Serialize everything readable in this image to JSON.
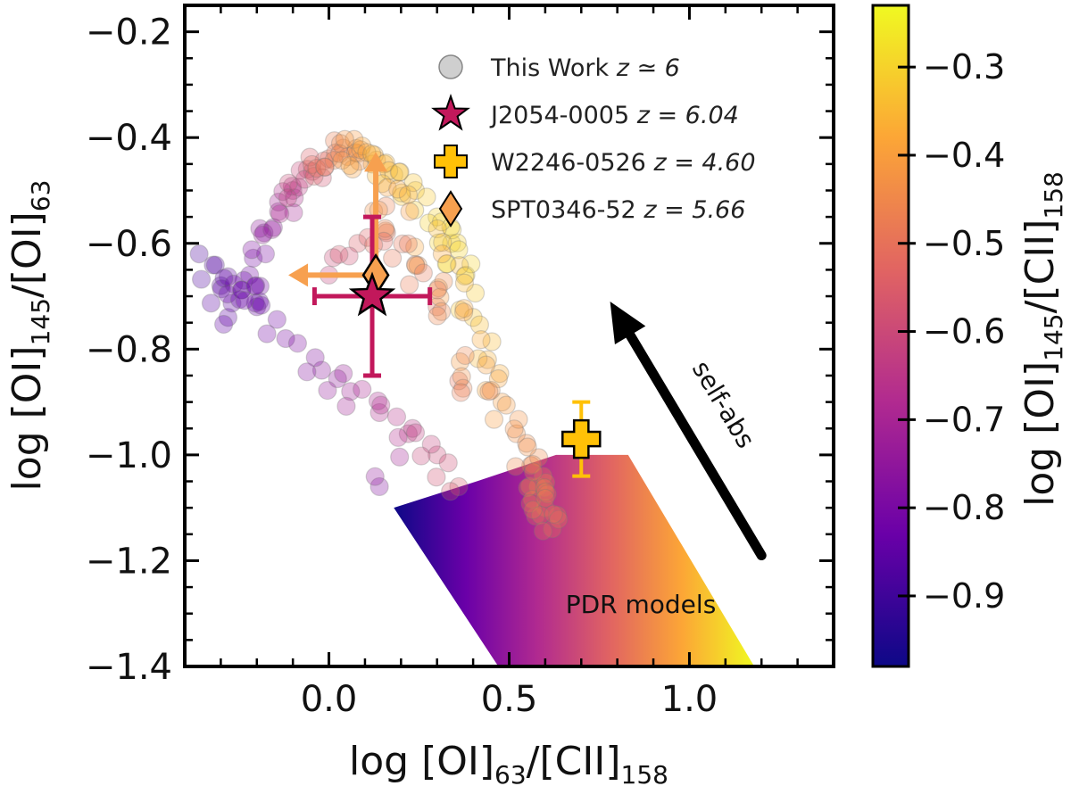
{
  "chart_data": {
    "type": "scatter",
    "xlabel": {
      "main": "log [OI]",
      "sub1": "63",
      "mid": "/[CII]",
      "sub2": "158"
    },
    "ylabel": {
      "main": "log [OI]",
      "sub1": "145",
      "mid": "/[OI]",
      "sub2": "63"
    },
    "xlim": [
      -0.4,
      1.4
    ],
    "ylim": [
      -1.4,
      -0.15
    ],
    "xticks": [
      0.0,
      0.5,
      1.0
    ],
    "xtick_labels": [
      "0.0",
      "0.5",
      "1.0"
    ],
    "yticks": [
      -1.4,
      -1.2,
      -1.0,
      -0.8,
      -0.6,
      -0.4,
      -0.2
    ],
    "ytick_labels": [
      "−1.4",
      "−1.2",
      "−1.0",
      "−0.8",
      "−0.6",
      "−0.4",
      "−0.2"
    ],
    "colorbar": {
      "label": {
        "main": "log [OI]",
        "sub1": "145",
        "mid": "/[CII]",
        "sub2": "158"
      },
      "range": [
        -0.98,
        -0.23
      ],
      "ticks": [
        -0.9,
        -0.8,
        -0.7,
        -0.6,
        -0.5,
        -0.4,
        -0.3
      ],
      "tick_labels": [
        "−0.9",
        "−0.8",
        "−0.7",
        "−0.6",
        "−0.5",
        "−0.4",
        "−0.3"
      ],
      "colors": [
        "#0d0887",
        "#6a00a8",
        "#b12a90",
        "#e16462",
        "#fca636",
        "#f0f921"
      ]
    },
    "legend": [
      {
        "marker": "circle",
        "color": "#bbbbbb",
        "text": "This Work ",
        "z": "z ≃ 6"
      },
      {
        "marker": "star",
        "color": "#c2185b",
        "text": "J2054-0005 ",
        "z": "z = 6.04"
      },
      {
        "marker": "cross",
        "color": "#ffc107",
        "text": "W2246-0526 ",
        "z": "z = 4.60"
      },
      {
        "marker": "diamond",
        "color": "#f7a04f",
        "text": "SPT0346-52 ",
        "z": "z = 5.66"
      }
    ],
    "series": [
      {
        "name": "This Work z ≃ 6",
        "kind": "simulated cloud",
        "points": [
          [
            -0.36,
            -0.62,
            -0.88
          ],
          [
            -0.3,
            -0.68,
            -0.86
          ],
          [
            -0.28,
            -0.74,
            -0.85
          ],
          [
            -0.22,
            -0.66,
            -0.82
          ],
          [
            -0.18,
            -0.58,
            -0.78
          ],
          [
            -0.14,
            -0.54,
            -0.72
          ],
          [
            -0.1,
            -0.5,
            -0.65
          ],
          [
            -0.06,
            -0.46,
            -0.56
          ],
          [
            0.0,
            -0.44,
            -0.5
          ],
          [
            0.04,
            -0.42,
            -0.44
          ],
          [
            0.08,
            -0.43,
            -0.4
          ],
          [
            0.12,
            -0.45,
            -0.36
          ],
          [
            0.18,
            -0.47,
            -0.34
          ],
          [
            0.24,
            -0.5,
            -0.32
          ],
          [
            0.3,
            -0.55,
            -0.3
          ],
          [
            0.34,
            -0.6,
            -0.29
          ],
          [
            0.38,
            -0.66,
            -0.3
          ],
          [
            0.4,
            -0.74,
            -0.33
          ],
          [
            0.44,
            -0.82,
            -0.36
          ],
          [
            0.48,
            -0.9,
            -0.4
          ],
          [
            0.52,
            -0.96,
            -0.43
          ],
          [
            0.56,
            -1.02,
            -0.45
          ],
          [
            0.58,
            -1.06,
            -0.46
          ],
          [
            0.6,
            -1.1,
            -0.48
          ],
          [
            0.62,
            -1.14,
            -0.5
          ],
          [
            -0.2,
            -0.72,
            -0.84
          ],
          [
            -0.12,
            -0.78,
            -0.8
          ],
          [
            -0.02,
            -0.84,
            -0.76
          ],
          [
            0.06,
            -0.88,
            -0.72
          ],
          [
            0.14,
            -0.92,
            -0.68
          ],
          [
            0.22,
            -0.96,
            -0.64
          ],
          [
            0.3,
            -1.0,
            -0.6
          ],
          [
            0.36,
            -1.06,
            -0.56
          ],
          [
            0.14,
            -1.06,
            -0.78
          ],
          [
            0.0,
            -0.66,
            -0.62
          ],
          [
            0.08,
            -0.6,
            -0.55
          ],
          [
            0.16,
            -0.58,
            -0.5
          ],
          [
            0.24,
            -0.64,
            -0.47
          ],
          [
            0.3,
            -0.72,
            -0.5
          ],
          [
            0.36,
            -0.86,
            -0.5
          ]
        ]
      },
      {
        "name": "J2054-0005 z = 6.04",
        "x": 0.12,
        "y": -0.7,
        "xerr": [
          0.16,
          0.16
        ],
        "yerr": [
          0.15,
          0.15
        ],
        "color": "#c2185b"
      },
      {
        "name": "W2246-0526 z = 4.60",
        "x": 0.7,
        "y": -0.97,
        "xerr": [
          0.04,
          0.04
        ],
        "yerr": [
          0.07,
          0.07
        ],
        "color": "#ffc107"
      },
      {
        "name": "SPT0346-52 z = 5.66",
        "x": 0.13,
        "y": -0.66,
        "limits": {
          "x": "upper",
          "y": "lower"
        },
        "color": "#f7a04f"
      }
    ],
    "pdr_models": {
      "label": "PDR models",
      "polygon": [
        [
          0.63,
          -1.0
        ],
        [
          0.83,
          -1.0
        ],
        [
          1.18,
          -1.4
        ],
        [
          0.47,
          -1.4
        ],
        [
          0.18,
          -1.1
        ],
        [
          0.41,
          -1.05
        ]
      ]
    },
    "annotations": [
      {
        "type": "arrow",
        "text": "self-abs",
        "from": [
          1.2,
          -1.19
        ],
        "to": [
          0.78,
          -0.71
        ]
      }
    ]
  }
}
